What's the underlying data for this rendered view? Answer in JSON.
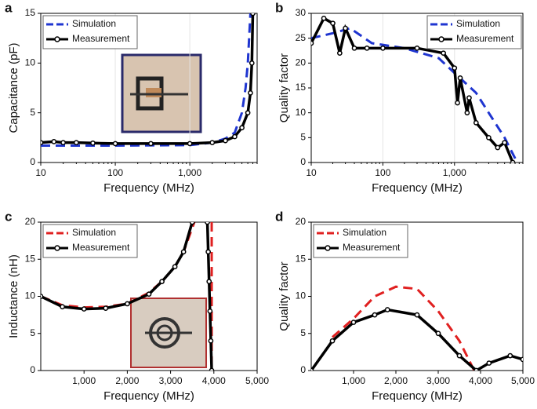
{
  "chart_data": [
    {
      "type": "line",
      "panel_label": "a",
      "xlabel": "Frequency (MHz)",
      "ylabel": "Capacitance (pF)",
      "xscale": "log",
      "xlim": [
        10,
        8000
      ],
      "xticks": [
        10,
        100,
        {
          "value": 1000,
          "label": "1,000"
        }
      ],
      "ylim": [
        0,
        15
      ],
      "yticks": [
        0,
        5,
        10,
        15
      ],
      "grid": true,
      "legend": "upper-left",
      "series": [
        {
          "name": "Simulation",
          "color": "#1f35d0",
          "style": "dashed",
          "x": [
            10,
            100,
            1000,
            2000,
            3000,
            4000,
            5000,
            5600,
            6000,
            6500
          ],
          "values": [
            1.7,
            1.7,
            1.75,
            2.0,
            2.4,
            3.0,
            5.0,
            7.5,
            10,
            15
          ]
        },
        {
          "name": "Measurement",
          "color": "#000000",
          "style": "marker",
          "x": [
            10,
            15,
            20,
            30,
            50,
            100,
            300,
            1000,
            2000,
            3000,
            4000,
            5000,
            6000,
            6500,
            6800,
            7000
          ],
          "values": [
            2.0,
            2.1,
            2.0,
            2.0,
            1.95,
            1.9,
            1.9,
            1.9,
            2.0,
            2.2,
            2.6,
            3.5,
            5,
            7,
            10,
            15
          ]
        }
      ]
    },
    {
      "type": "line",
      "panel_label": "b",
      "xlabel": "Frequency (MHz)",
      "ylabel": "Quality factor",
      "xscale": "log",
      "xlim": [
        10,
        9000
      ],
      "xticks": [
        10,
        100,
        {
          "value": 1000,
          "label": "1,000"
        }
      ],
      "ylim": [
        0,
        30
      ],
      "yticks": [
        0,
        5,
        10,
        15,
        20,
        25,
        30
      ],
      "grid": true,
      "legend": "upper-right",
      "series": [
        {
          "name": "Simulation",
          "color": "#1f35d0",
          "style": "dashed",
          "x": [
            10,
            20,
            35,
            70,
            200,
            600,
            1000,
            2000,
            3000,
            5000,
            7500
          ],
          "values": [
            25,
            26,
            27,
            24,
            23,
            21,
            18,
            14,
            10,
            5,
            0
          ]
        },
        {
          "name": "Measurement",
          "color": "#000000",
          "style": "marker",
          "x": [
            10,
            15,
            20,
            25,
            30,
            40,
            60,
            100,
            300,
            700,
            1000,
            1100,
            1200,
            1500,
            1600,
            2000,
            3000,
            4000,
            5000,
            6500
          ],
          "values": [
            24,
            29,
            28,
            22,
            27,
            23,
            23,
            23,
            23,
            22,
            19,
            12,
            17,
            10,
            13,
            8,
            5,
            3,
            4,
            0
          ]
        }
      ]
    },
    {
      "type": "line",
      "panel_label": "c",
      "xlabel": "Frequency (MHz)",
      "ylabel": "Inductance (nH)",
      "xscale": "linear",
      "xlim": [
        0,
        5000
      ],
      "xticks": [
        {
          "value": 1000,
          "label": "1,000"
        },
        {
          "value": 2000,
          "label": "2,000"
        },
        {
          "value": 3000,
          "label": "3,000"
        },
        {
          "value": 4000,
          "label": "4,000"
        },
        {
          "value": 5000,
          "label": "5,000"
        }
      ],
      "ylim": [
        0,
        20
      ],
      "yticks": [
        0,
        5,
        10,
        15,
        20
      ],
      "grid": false,
      "legend": "upper-left",
      "series": [
        {
          "name": "Simulation",
          "color": "#e02020",
          "style": "dashed",
          "x": [
            0,
            500,
            1000,
            1500,
            2000,
            2500,
            2800,
            3100,
            3300,
            3550,
            null,
            3950,
            3950
          ],
          "values": [
            10,
            8.8,
            8.5,
            8.6,
            9,
            10.5,
            12,
            14,
            16,
            20,
            null,
            20,
            0
          ]
        },
        {
          "name": "Measurement",
          "color": "#000000",
          "style": "marker",
          "x": [
            0,
            500,
            1000,
            1500,
            2000,
            2500,
            2800,
            3100,
            3300,
            3500,
            null,
            3850,
            3870,
            3890,
            3910,
            3930,
            3950
          ],
          "values": [
            10,
            8.6,
            8.3,
            8.4,
            9,
            10.3,
            12,
            14,
            16,
            20,
            null,
            20,
            16,
            12,
            8,
            4,
            0
          ]
        }
      ]
    },
    {
      "type": "line",
      "panel_label": "d",
      "xlabel": "Frequency (MHz)",
      "ylabel": "Quality factor",
      "xscale": "linear",
      "xlim": [
        0,
        5000
      ],
      "xticks": [
        {
          "value": 1000,
          "label": "1,000"
        },
        {
          "value": 2000,
          "label": "2,000"
        },
        {
          "value": 3000,
          "label": "3,000"
        },
        {
          "value": 4000,
          "label": "4,000"
        },
        {
          "value": 5000,
          "label": "5,000"
        }
      ],
      "ylim": [
        0,
        20
      ],
      "yticks": [
        0,
        5,
        10,
        15,
        20
      ],
      "grid": false,
      "legend": "upper-left",
      "series": [
        {
          "name": "Simulation",
          "color": "#e02020",
          "style": "dashed",
          "x": [
            500,
            1000,
            1500,
            2000,
            2500,
            3000,
            3500,
            3850
          ],
          "values": [
            4.5,
            7,
            10,
            11.3,
            11,
            8,
            4,
            0
          ]
        },
        {
          "name": "Measurement",
          "color": "#000000",
          "style": "marker",
          "x": [
            0,
            500,
            1000,
            1500,
            1800,
            2500,
            3000,
            3500,
            3900,
            4200,
            4700,
            5000
          ],
          "values": [
            0,
            4,
            6.5,
            7.5,
            8.2,
            7.5,
            5,
            2,
            0,
            1,
            2,
            1.5
          ]
        }
      ]
    }
  ]
}
